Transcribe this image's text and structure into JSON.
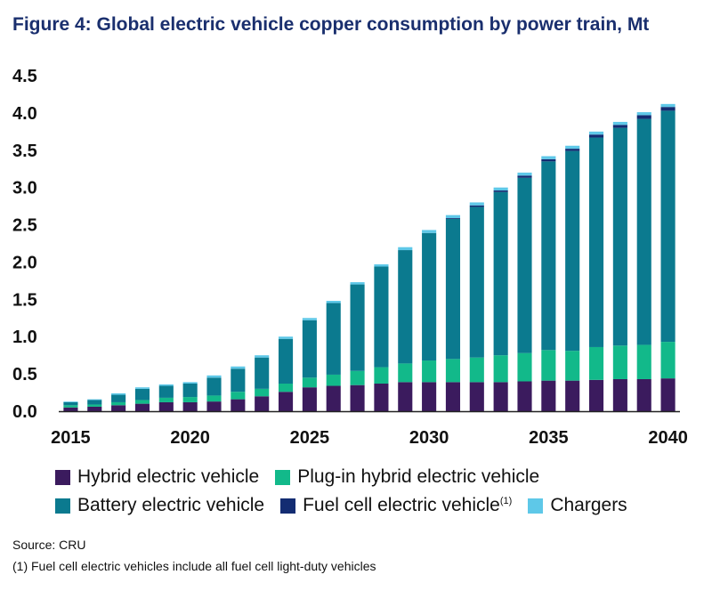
{
  "chart_data": {
    "type": "bar",
    "stacked": true,
    "title": "Figure 4: Global electric vehicle copper consumption by power train, Mt",
    "categories": [
      "2015",
      "2016",
      "2017",
      "2018",
      "2019",
      "2020",
      "2021",
      "2022",
      "2023",
      "2024",
      "2025",
      "2026",
      "2027",
      "2028",
      "2029",
      "2030",
      "2031",
      "2032",
      "2033",
      "2034",
      "2035",
      "2036",
      "2037",
      "2038",
      "2039",
      "2040"
    ],
    "x_tick_labels": [
      "2015",
      "2020",
      "2025",
      "2030",
      "2035",
      "2040"
    ],
    "y_tick_labels": [
      "0.0",
      "0.5",
      "1.0",
      "1.5",
      "2.0",
      "2.5",
      "3.0",
      "3.5",
      "4.0",
      "4.5"
    ],
    "ylim": [
      0,
      4.5
    ],
    "series": [
      {
        "name": "Hybrid electric vehicle",
        "color": "#3b1b5e",
        "values": [
          0.05,
          0.06,
          0.08,
          0.1,
          0.12,
          0.12,
          0.13,
          0.16,
          0.2,
          0.26,
          0.32,
          0.34,
          0.35,
          0.37,
          0.39,
          0.39,
          0.39,
          0.39,
          0.39,
          0.4,
          0.41,
          0.41,
          0.42,
          0.43,
          0.43,
          0.44
        ]
      },
      {
        "name": "Plug-in hybrid electric vehicle",
        "color": "#12b98a",
        "values": [
          0.03,
          0.03,
          0.04,
          0.05,
          0.06,
          0.07,
          0.08,
          0.1,
          0.1,
          0.11,
          0.13,
          0.15,
          0.19,
          0.22,
          0.25,
          0.29,
          0.31,
          0.33,
          0.36,
          0.38,
          0.41,
          0.4,
          0.44,
          0.45,
          0.46,
          0.49
        ]
      },
      {
        "name": "Battery electric vehicle",
        "color": "#0b7a8f",
        "values": [
          0.04,
          0.06,
          0.1,
          0.15,
          0.16,
          0.18,
          0.24,
          0.31,
          0.42,
          0.6,
          0.77,
          0.96,
          1.16,
          1.35,
          1.52,
          1.71,
          1.88,
          2.02,
          2.19,
          2.35,
          2.53,
          2.68,
          2.81,
          2.92,
          3.03,
          3.1
        ]
      },
      {
        "name": "Fuel cell electric vehicle",
        "superscript": "(1)",
        "color": "#132c72",
        "values": [
          0,
          0,
          0,
          0,
          0,
          0,
          0,
          0,
          0,
          0,
          0,
          0,
          0,
          0,
          0,
          0,
          0.01,
          0.02,
          0.02,
          0.03,
          0.03,
          0.03,
          0.04,
          0.04,
          0.05,
          0.05
        ]
      },
      {
        "name": "Chargers",
        "color": "#5ec8e8",
        "values": [
          0.01,
          0.01,
          0.02,
          0.02,
          0.02,
          0.02,
          0.03,
          0.03,
          0.03,
          0.03,
          0.03,
          0.03,
          0.03,
          0.03,
          0.04,
          0.04,
          0.04,
          0.04,
          0.04,
          0.04,
          0.04,
          0.04,
          0.04,
          0.04,
          0.04,
          0.04
        ]
      }
    ],
    "legend_rows": [
      [
        0,
        1
      ],
      [
        2,
        3,
        4
      ]
    ],
    "grid": false
  },
  "source": "Source: CRU",
  "footnote": "(1) Fuel cell electric vehicles include all fuel cell light-duty vehicles"
}
